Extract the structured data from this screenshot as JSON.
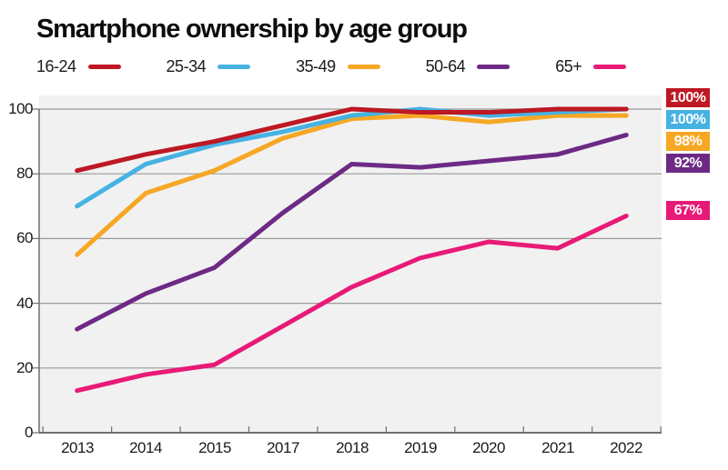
{
  "title": "Smartphone ownership by age group",
  "chart_data": {
    "type": "line",
    "categories": [
      "2013",
      "2014",
      "2015",
      "2017",
      "2018",
      "2019",
      "2020",
      "2021",
      "2022"
    ],
    "series": [
      {
        "name": "16-24",
        "color": "#bd1823",
        "values": [
          81,
          86,
          90,
          95,
          100,
          99,
          99,
          100,
          100
        ],
        "end_label": "100%"
      },
      {
        "name": "25-34",
        "color": "#46b2e2",
        "values": [
          70,
          83,
          89,
          93,
          98,
          100,
          98,
          99,
          100
        ],
        "end_label": "100%"
      },
      {
        "name": "35-49",
        "color": "#f6a724",
        "values": [
          55,
          74,
          81,
          91,
          97,
          98,
          96,
          98,
          98
        ],
        "end_label": "98%"
      },
      {
        "name": "50-64",
        "color": "#6d2a85",
        "values": [
          32,
          43,
          51,
          68,
          83,
          82,
          84,
          86,
          92
        ],
        "end_label": "92%"
      },
      {
        "name": "65+",
        "color": "#e81a77",
        "values": [
          13,
          18,
          21,
          33,
          45,
          54,
          59,
          57,
          67
        ],
        "end_label": "67%"
      }
    ],
    "yticks": [
      0,
      20,
      40,
      60,
      80,
      100
    ],
    "ylim": [
      0,
      100
    ],
    "xlabel": "",
    "ylabel": "",
    "grid": "horizontal",
    "legend_position": "top",
    "colors": {
      "plot_bg": "#f1f1f1",
      "grid": "#9a9a9a",
      "axis": "#6f6f6f"
    }
  }
}
